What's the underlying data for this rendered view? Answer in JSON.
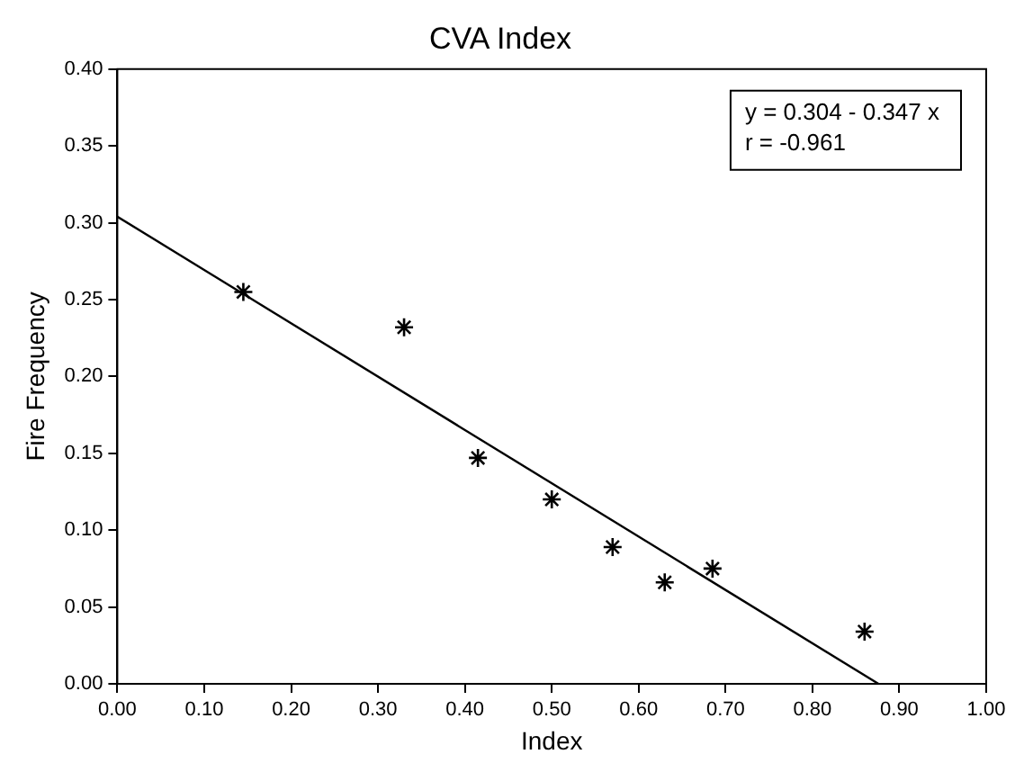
{
  "chart_data": {
    "type": "scatter",
    "title": "CVA Index",
    "xlabel": "Index",
    "ylabel": "Fire Frequency",
    "x": [
      0.145,
      0.33,
      0.415,
      0.5,
      0.57,
      0.63,
      0.685,
      0.86
    ],
    "series": [
      {
        "type": "scatter",
        "color": "#000000",
        "marker": "cross",
        "values": [
          0.255,
          0.232,
          0.147,
          0.12,
          0.089,
          0.066,
          0.075,
          0.034
        ]
      },
      {
        "type": "line",
        "color": "#000000",
        "marker": "none",
        "line_style": "solid",
        "x": [
          0,
          0.876
        ],
        "values": [
          0.304,
          0
        ]
      }
    ],
    "xlim": [
      0,
      1
    ],
    "ylim": [
      0,
      0.4
    ],
    "xticks": [
      {
        "value": 0,
        "label": "0.00"
      },
      {
        "value": 0.1,
        "label": "0.10"
      },
      {
        "value": 0.2,
        "label": "0.20"
      },
      {
        "value": 0.3,
        "label": "0.30"
      },
      {
        "value": 0.4,
        "label": "0.40"
      },
      {
        "value": 0.5,
        "label": "0.50"
      },
      {
        "value": 0.6,
        "label": "0.60"
      },
      {
        "value": 0.7,
        "label": "0.70"
      },
      {
        "value": 0.8,
        "label": "0.80"
      },
      {
        "value": 0.9,
        "label": "0.90"
      },
      {
        "value": 1,
        "label": "1.00"
      }
    ],
    "yticks": [
      {
        "value": 0,
        "label": "0.00"
      },
      {
        "value": 0.05,
        "label": "0.05"
      },
      {
        "value": 0.1,
        "label": "0.10"
      },
      {
        "value": 0.15,
        "label": "0.15"
      },
      {
        "value": 0.2,
        "label": "0.20"
      },
      {
        "value": 0.25,
        "label": "0.25"
      },
      {
        "value": 0.3,
        "label": "0.30"
      },
      {
        "value": 0.35,
        "label": "0.35"
      },
      {
        "value": 0.4,
        "label": "0.40"
      }
    ],
    "annotations": [
      "y = 0.304 - 0.347 x",
      "r = -0.961"
    ],
    "grid": false,
    "legend": false
  }
}
